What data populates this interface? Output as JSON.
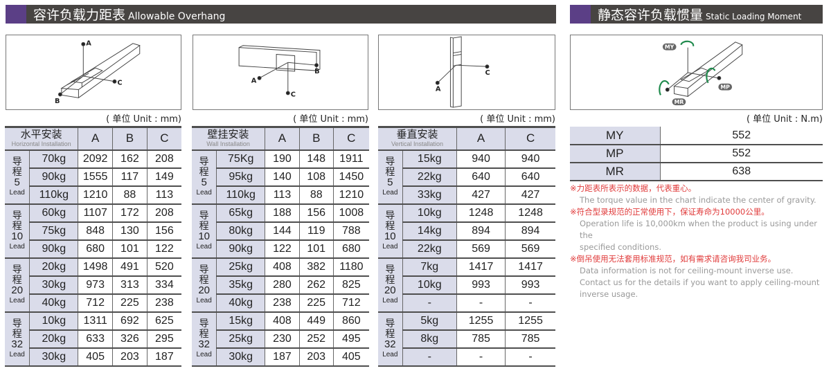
{
  "header_left": {
    "zh": "容许负载力距表",
    "en": "Allowable Overhang"
  },
  "header_right": {
    "zh": "静态容许负载惯量",
    "en": "Static Loading Moment"
  },
  "diagram_labels": {
    "horizontal": [
      "A",
      "B",
      "C"
    ],
    "wall": [
      "A",
      "B",
      "C"
    ],
    "vertical": [
      "A",
      "C"
    ],
    "moment": [
      "MY",
      "MP",
      "MR"
    ]
  },
  "colors": {
    "accent": "#5b3f86",
    "bar": "#474442",
    "header_cell": "#dadcea",
    "note_red": "#e03a3a",
    "arrow_green": "#1f8a4c"
  },
  "unit_mm": "( 单位 Unit : mm)",
  "unit_nm": "( 单位 Unit : N.m)",
  "lead_zh": "导程",
  "lead_en": "Lead",
  "tables": [
    {
      "title_zh": "水平安装",
      "title_en": "Horizontal Installation",
      "columns": [
        "A",
        "B",
        "C"
      ],
      "groups": [
        {
          "lead": "5",
          "rows": [
            [
              "70kg",
              "2092",
              "162",
              "208"
            ],
            [
              "90kg",
              "1555",
              "117",
              "149"
            ],
            [
              "110kg",
              "1210",
              "88",
              "113"
            ]
          ]
        },
        {
          "lead": "10",
          "rows": [
            [
              "60kg",
              "1107",
              "172",
              "208"
            ],
            [
              "75kg",
              "848",
              "130",
              "156"
            ],
            [
              "90kg",
              "680",
              "101",
              "122"
            ]
          ]
        },
        {
          "lead": "20",
          "rows": [
            [
              "20kg",
              "1498",
              "491",
              "520"
            ],
            [
              "30kg",
              "973",
              "313",
              "334"
            ],
            [
              "40kg",
              "712",
              "225",
              "238"
            ]
          ]
        },
        {
          "lead": "32",
          "rows": [
            [
              "10kg",
              "1311",
              "692",
              "625"
            ],
            [
              "20kg",
              "633",
              "326",
              "295"
            ],
            [
              "30kg",
              "405",
              "203",
              "187"
            ]
          ]
        }
      ]
    },
    {
      "title_zh": "壁挂安装",
      "title_en": "Wall Installation",
      "columns": [
        "A",
        "B",
        "C"
      ],
      "groups": [
        {
          "lead": "5",
          "rows": [
            [
              "75Kg",
              "190",
              "148",
              "1911"
            ],
            [
              "95kg",
              "140",
              "108",
              "1450"
            ],
            [
              "110kg",
              "113",
              "88",
              "1210"
            ]
          ]
        },
        {
          "lead": "10",
          "rows": [
            [
              "65kg",
              "188",
              "156",
              "1008"
            ],
            [
              "80kg",
              "144",
              "119",
              "788"
            ],
            [
              "90kg",
              "122",
              "101",
              "680"
            ]
          ]
        },
        {
          "lead": "20",
          "rows": [
            [
              "25kg",
              "408",
              "382",
              "1180"
            ],
            [
              "35kg",
              "280",
              "262",
              "825"
            ],
            [
              "40kg",
              "238",
              "225",
              "712"
            ]
          ]
        },
        {
          "lead": "32",
          "rows": [
            [
              "15kg",
              "408",
              "449",
              "860"
            ],
            [
              "25kg",
              "230",
              "252",
              "495"
            ],
            [
              "30kg",
              "187",
              "203",
              "405"
            ]
          ]
        }
      ]
    },
    {
      "title_zh": "垂直安装",
      "title_en": "Vertical Installation",
      "columns": [
        "A",
        "C"
      ],
      "groups": [
        {
          "lead": "5",
          "rows": [
            [
              "15kg",
              "940",
              "940"
            ],
            [
              "22kg",
              "640",
              "640"
            ],
            [
              "33kg",
              "427",
              "427"
            ]
          ]
        },
        {
          "lead": "10",
          "rows": [
            [
              "10kg",
              "1248",
              "1248"
            ],
            [
              "14kg",
              "894",
              "894"
            ],
            [
              "22kg",
              "569",
              "569"
            ]
          ]
        },
        {
          "lead": "20",
          "rows": [
            [
              "7kg",
              "1417",
              "1417"
            ],
            [
              "10kg",
              "993",
              "993"
            ],
            [
              "-",
              "-",
              "-"
            ]
          ]
        },
        {
          "lead": "32",
          "rows": [
            [
              "5kg",
              "1255",
              "1255"
            ],
            [
              "8kg",
              "785",
              "785"
            ],
            [
              "-",
              "-",
              "-"
            ]
          ]
        }
      ]
    }
  ],
  "moments": [
    {
      "name": "MY",
      "value": "552"
    },
    {
      "name": "MP",
      "value": "552"
    },
    {
      "name": "MR",
      "value": "638"
    }
  ],
  "notes": [
    {
      "zh": "※力距表所表示的数据，代表重心。",
      "en": [
        "The torque value in the chart indicate the center of gravity."
      ]
    },
    {
      "zh": "※符合型录规范的正常使用下，保证寿命为10000公里。",
      "en": [
        "Operation life is 10,000km when the product is using under the",
        " specified conditions."
      ]
    },
    {
      "zh": "※倒吊使用无法套用标准规范，如有需求请咨询我司业务。",
      "en": [
        "Data information is not for ceiling-mount inverse use.",
        "Contact us for the details if you want to apply ceiling-mount",
        "inverse usage."
      ]
    }
  ]
}
